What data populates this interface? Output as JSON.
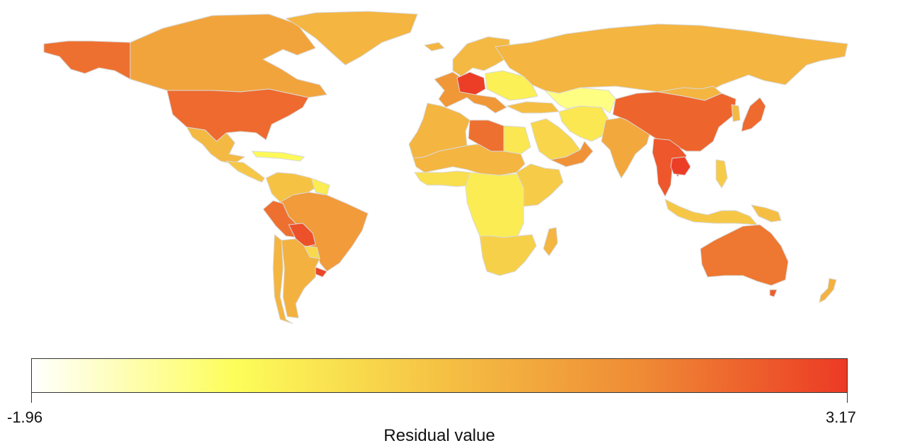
{
  "legend": {
    "title": "Residual value",
    "min_label": "-1.96",
    "max_label": "3.17",
    "min": -1.96,
    "max": 3.17,
    "gradient_stops": [
      "#ffffff",
      "#fdfd5a",
      "#f5c244",
      "#ef8a35",
      "#ec3a25"
    ]
  },
  "map": {
    "background": "#ffffff",
    "border_color": "#d9d9d9",
    "regions": [
      {
        "name": "Alaska",
        "value": 2.3
      },
      {
        "name": "Canada",
        "value": 1.3
      },
      {
        "name": "Greenland",
        "value": 0.9
      },
      {
        "name": "United States",
        "value": 2.4
      },
      {
        "name": "Mexico",
        "value": 0.8
      },
      {
        "name": "Central America",
        "value": 0.5
      },
      {
        "name": "Caribbean",
        "value": -0.6
      },
      {
        "name": "Colombia / Venezuela",
        "value": 0.6
      },
      {
        "name": "Guianas",
        "value": -0.3
      },
      {
        "name": "Peru",
        "value": 2.3
      },
      {
        "name": "Brazil",
        "value": 1.5
      },
      {
        "name": "Bolivia",
        "value": 2.8
      },
      {
        "name": "Paraguay",
        "value": 0.1
      },
      {
        "name": "Uruguay",
        "value": 3.0
      },
      {
        "name": "Chile",
        "value": 0.9
      },
      {
        "name": "Argentina",
        "value": 1.0
      },
      {
        "name": "Iceland",
        "value": 0.9
      },
      {
        "name": "Scandinavia",
        "value": 0.8
      },
      {
        "name": "Western Europe",
        "value": 1.6
      },
      {
        "name": "Germany / Poland",
        "value": 3.1
      },
      {
        "name": "Eastern Europe",
        "value": -0.4
      },
      {
        "name": "Russia",
        "value": 0.9
      },
      {
        "name": "Turkey",
        "value": 0.7
      },
      {
        "name": "North-West Africa",
        "value": 0.9
      },
      {
        "name": "Libya",
        "value": 2.3
      },
      {
        "name": "Egypt",
        "value": -0.2
      },
      {
        "name": "Sahel",
        "value": 0.9
      },
      {
        "name": "West Africa coast",
        "value": 0.0
      },
      {
        "name": "Central Africa",
        "value": -0.3
      },
      {
        "name": "East Africa",
        "value": 0.4
      },
      {
        "name": "Southern Africa",
        "value": 0.3
      },
      {
        "name": "Madagascar",
        "value": 0.9
      },
      {
        "name": "Arabian Peninsula",
        "value": 0.2
      },
      {
        "name": "Yemen / Oman",
        "value": 1.7
      },
      {
        "name": "Iran / Afghanistan",
        "value": -0.2
      },
      {
        "name": "Central Asia",
        "value": -1.0
      },
      {
        "name": "India",
        "value": 1.2
      },
      {
        "name": "China",
        "value": 2.5
      },
      {
        "name": "Mongolia",
        "value": 0.9
      },
      {
        "name": "Korea",
        "value": 0.8
      },
      {
        "name": "Japan",
        "value": 2.4
      },
      {
        "name": "Mainland South-East Asia",
        "value": 2.7
      },
      {
        "name": "Cambodia",
        "value": 3.1
      },
      {
        "name": "Indonesia / Malaysia",
        "value": 0.5
      },
      {
        "name": "Philippines",
        "value": 0.4
      },
      {
        "name": "Papua New Guinea",
        "value": 0.7
      },
      {
        "name": "Australia",
        "value": 2.2
      },
      {
        "name": "Tasmania",
        "value": 2.6
      },
      {
        "name": "New Zealand",
        "value": 1.0
      }
    ]
  }
}
